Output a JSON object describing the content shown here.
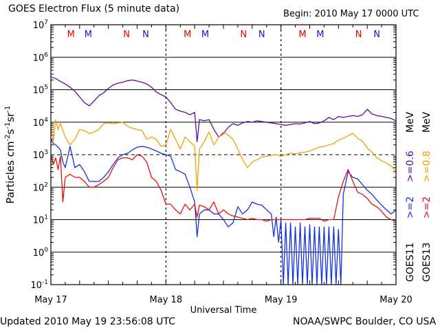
{
  "header": {
    "title": "GOES Electron Flux (5 minute data)",
    "begin": "Begin: 2010 May 17 0000 UTC"
  },
  "footer": {
    "updated": "Updated 2010 May 19 23:56:08 UTC",
    "credit": "NOAA/SWPC Boulder, CO USA"
  },
  "chart_data": {
    "type": "line",
    "title": "GOES Electron Flux (5 minute data)",
    "xlabel": "Universal Time",
    "ylabel": "Particles cm-2s-1sr-1",
    "yscale": "log",
    "ylim": [
      0.1,
      10000000
    ],
    "xlim": [
      0,
      72
    ],
    "x_unit": "hours since 2010 May 17 0000 UTC",
    "x_ticks": [
      {
        "x": 0,
        "label": "May 17"
      },
      {
        "x": 24,
        "label": "May 18"
      },
      {
        "x": 48,
        "label": "May 19"
      },
      {
        "x": 72,
        "label": "May 20"
      }
    ],
    "y_ticks": [
      {
        "exp": -1
      },
      {
        "exp": 0
      },
      {
        "exp": 1
      },
      {
        "exp": 2
      },
      {
        "exp": 3
      },
      {
        "exp": 4
      },
      {
        "exp": 5
      },
      {
        "exp": 6
      },
      {
        "exp": 7
      }
    ],
    "threshold_line": 1000,
    "marker_rows": [
      {
        "label": "M",
        "x": 4.2,
        "color": "#e00000"
      },
      {
        "label": "M",
        "x": 7.8,
        "color": "#1010e0"
      },
      {
        "label": "N",
        "x": 15.8,
        "color": "#e00000"
      },
      {
        "label": "N",
        "x": 19.8,
        "color": "#1010e0"
      },
      {
        "label": "M",
        "x": 28.5,
        "color": "#e00000"
      },
      {
        "label": "M",
        "x": 32.2,
        "color": "#1010e0"
      },
      {
        "label": "N",
        "x": 40.2,
        "color": "#e00000"
      },
      {
        "label": "N",
        "x": 44.0,
        "color": "#1010e0"
      },
      {
        "label": "M",
        "x": 52.5,
        "color": "#e00000"
      },
      {
        "label": "M",
        "x": 56.2,
        "color": "#1010e0"
      },
      {
        "label": "N",
        "x": 64.2,
        "color": "#e00000"
      },
      {
        "label": "N",
        "x": 68.0,
        "color": "#1010e0"
      }
    ],
    "right_labels": {
      "goes11": "GOES11",
      "goes13": "GOES13",
      "blue_ge2": ">=2",
      "red_ge2": ">=2",
      "purple_ge06": ">=0.6",
      "orange_ge08": ">=0.8",
      "mev1": "MeV",
      "mev2": "MeV"
    },
    "series": [
      {
        "color": "#5a0aa0",
        "x": [
          0,
          1,
          2,
          3,
          4,
          5,
          6,
          7,
          8,
          9,
          10,
          11,
          12,
          13,
          14,
          15,
          16,
          17,
          18,
          19,
          20,
          21,
          22,
          23,
          24,
          25,
          26,
          27,
          28,
          29,
          30,
          30.5,
          31,
          32,
          33,
          34,
          35,
          36,
          37,
          38,
          39,
          40,
          41,
          42,
          43,
          44,
          45,
          46,
          47,
          48,
          49,
          50,
          51,
          52,
          53,
          54,
          55,
          56,
          57,
          58,
          59,
          60,
          61,
          62,
          63,
          64,
          65,
          66,
          67,
          68,
          69,
          70,
          71,
          72
        ],
        "values": [
          250000,
          220000,
          180000,
          150000,
          120000,
          90000,
          60000,
          40000,
          32000,
          45000,
          65000,
          80000,
          110000,
          140000,
          160000,
          170000,
          190000,
          200000,
          185000,
          170000,
          150000,
          120000,
          85000,
          70000,
          60000,
          40000,
          25000,
          22000,
          20000,
          17000,
          20000,
          2500,
          12000,
          11000,
          12000,
          6000,
          3500,
          4500,
          7000,
          9000,
          8000,
          9500,
          10500,
          10000,
          11000,
          10500,
          10000,
          9500,
          9000,
          8500,
          8000,
          8500,
          9000,
          8800,
          9500,
          10500,
          9000,
          9500,
          11000,
          14000,
          12000,
          15000,
          14000,
          15000,
          16000,
          15000,
          17000,
          25000,
          18000,
          16000,
          15000,
          14000,
          13000,
          11000
        ]
      },
      {
        "color": "#f0a000",
        "x": [
          0,
          0.5,
          1,
          1.5,
          2,
          3,
          4,
          5,
          6,
          7,
          8,
          9,
          10,
          11,
          12,
          13,
          14,
          15,
          16,
          17,
          18,
          19,
          20,
          21,
          22,
          23,
          24,
          25,
          26,
          27,
          28,
          29,
          30,
          30.5,
          31,
          32,
          33,
          34,
          35,
          36,
          37,
          38,
          39,
          40,
          41,
          42,
          43,
          44,
          45,
          46,
          47,
          48,
          49,
          50,
          51,
          52,
          53,
          54,
          55,
          56,
          57,
          58,
          59,
          60,
          61,
          62,
          63,
          64,
          65,
          66,
          67,
          68,
          69,
          70,
          71,
          72
        ],
        "values": [
          8000,
          2500,
          12000,
          6000,
          9000,
          3500,
          2000,
          3000,
          6000,
          5500,
          4500,
          5000,
          6000,
          9000,
          9500,
          9000,
          9500,
          10000,
          7500,
          6500,
          6000,
          5500,
          3000,
          3500,
          3000,
          1800,
          2000,
          6000,
          3000,
          1500,
          3500,
          2500,
          1800,
          80,
          1500,
          2500,
          5000,
          2000,
          3500,
          5000,
          4000,
          3000,
          1500,
          700,
          400,
          600,
          700,
          850,
          900,
          950,
          1000,
          900,
          1000,
          1100,
          1050,
          1150,
          1200,
          1300,
          1500,
          1700,
          1800,
          2000,
          2200,
          2800,
          3200,
          3800,
          4500,
          3200,
          2600,
          1600,
          1200,
          800,
          650,
          550,
          450,
          300
        ]
      },
      {
        "color": "#1030e0",
        "x": [
          0,
          0.5,
          1,
          1.5,
          2,
          2.5,
          3,
          4,
          5,
          6,
          7,
          8,
          9,
          10,
          11,
          12,
          13,
          14,
          15,
          16,
          17,
          18,
          19,
          20,
          21,
          22,
          23,
          24,
          25,
          26,
          27,
          28,
          29,
          30,
          30.5,
          31,
          32,
          33,
          34,
          35,
          36,
          37,
          38,
          39,
          40,
          41,
          42,
          43,
          44,
          45,
          46,
          46.5,
          47,
          47.5,
          48,
          48.5,
          49,
          49.5,
          50,
          50.5,
          51,
          51.5,
          52,
          52.5,
          53,
          53.5,
          54,
          54.5,
          55,
          55.5,
          56,
          56.5,
          57,
          57.5,
          58,
          58.5,
          59,
          59.5,
          60,
          60.5,
          61,
          62,
          63,
          64,
          65,
          66,
          67,
          68,
          69,
          70,
          71,
          72
        ],
        "values": [
          3000,
          2200,
          2000,
          1700,
          1400,
          600,
          400,
          1800,
          400,
          500,
          300,
          150,
          150,
          150,
          200,
          300,
          500,
          800,
          1000,
          1100,
          1400,
          1700,
          1800,
          1700,
          1500,
          1300,
          1100,
          1000,
          900,
          350,
          300,
          250,
          100,
          35,
          3,
          15,
          20,
          20,
          15,
          15,
          10,
          6,
          8,
          25,
          15,
          20,
          35,
          30,
          28,
          20,
          15,
          3,
          12,
          2,
          10,
          0.1,
          8,
          0.1,
          8,
          0.1,
          6,
          0.1,
          8,
          0.1,
          6,
          0.1,
          7,
          0.1,
          6,
          0.1,
          6,
          0.1,
          6,
          0.1,
          6,
          0.1,
          6,
          0.1,
          5,
          0.1,
          60,
          300,
          200,
          180,
          120,
          80,
          60,
          40,
          28,
          20,
          15,
          20
        ]
      },
      {
        "color": "#e01010",
        "x": [
          0,
          0.5,
          1,
          1.5,
          2,
          2.5,
          3,
          4,
          5,
          6,
          7,
          8,
          9,
          10,
          11,
          12,
          13,
          14,
          15,
          16,
          17,
          18,
          19,
          20,
          21,
          22,
          23,
          24,
          25,
          26,
          27,
          28,
          29,
          30,
          30.5,
          31,
          32,
          33,
          34,
          35,
          36,
          37,
          38,
          39,
          40,
          41,
          42,
          43,
          44,
          45,
          46,
          47,
          48,
          49,
          50,
          51,
          52,
          53,
          54,
          55,
          56,
          57,
          58,
          59,
          60,
          61,
          62,
          63,
          64,
          65,
          66,
          67,
          68,
          69,
          70,
          71,
          72
        ],
        "values": [
          1000,
          500,
          800,
          350,
          900,
          35,
          200,
          250,
          200,
          200,
          150,
          100,
          100,
          120,
          150,
          200,
          400,
          700,
          800,
          800,
          700,
          1000,
          900,
          600,
          200,
          150,
          80,
          30,
          30,
          20,
          15,
          30,
          20,
          30,
          12,
          28,
          25,
          20,
          35,
          15,
          20,
          15,
          13,
          12,
          11,
          10,
          11,
          10,
          10,
          9,
          10,
          10,
          10,
          10,
          10,
          10,
          10,
          10,
          11,
          11,
          11,
          9,
          10,
          10,
          50,
          150,
          350,
          150,
          70,
          60,
          45,
          30,
          25,
          18,
          12,
          10,
          9
        ]
      }
    ]
  }
}
